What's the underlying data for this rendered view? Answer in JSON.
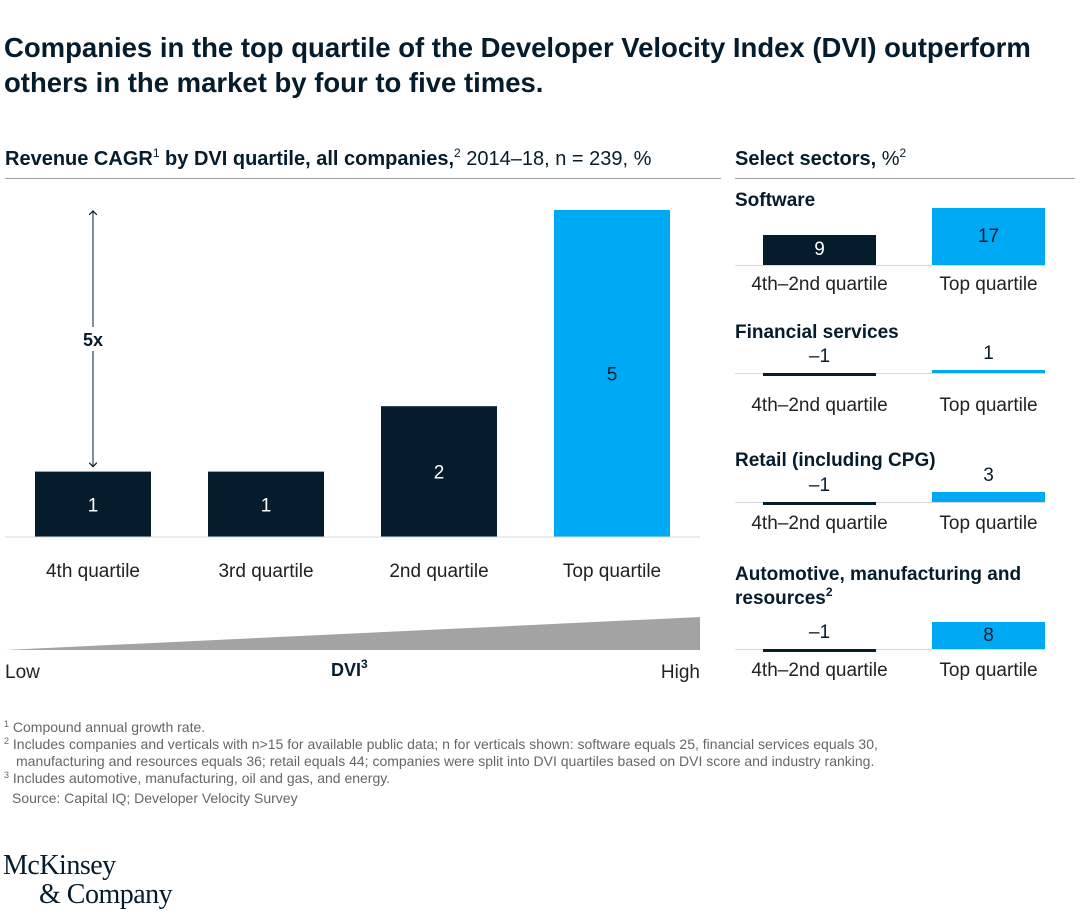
{
  "title": "Companies in the top quartile of the Developer Velocity Index (DVI) outperform others in the market by four to five times.",
  "left_panel": {
    "title_bold": "Revenue CAGR",
    "title_sup1": "1",
    "title_bold2": " by DVI quartile, all companies,",
    "title_sup2": "2",
    "title_rest": " 2014–18, n = 239, %",
    "multiplier_label": "5x",
    "axis_low": "Low",
    "axis_high": "High",
    "axis_label": "DVI",
    "axis_sup": "3"
  },
  "right_panel": {
    "title_bold": "Select sectors,",
    "title_rest": " %",
    "title_sup": "2"
  },
  "colors": {
    "dark": "#051c2c",
    "accent": "#00a9f4",
    "gray": "#a3a3a3"
  },
  "chart_data": [
    {
      "type": "bar",
      "title": "Revenue CAGR by DVI quartile, all companies, 2014–18, n = 239, %",
      "categories": [
        "4th quartile",
        "3rd quartile",
        "2nd quartile",
        "Top quartile"
      ],
      "values": [
        1,
        1,
        2,
        5
      ],
      "value_labels": [
        "1",
        "1",
        "2",
        "5"
      ],
      "xlabel": "DVI",
      "ylim": [
        0,
        5
      ]
    },
    {
      "type": "bar",
      "title": "Select sectors, %",
      "categories": [
        "4th–2nd quartile",
        "Top quartile"
      ],
      "series": [
        {
          "name": "Software",
          "display_name": "Software",
          "name_sup": "",
          "values": [
            9,
            17
          ],
          "value_labels": [
            "9",
            "17"
          ]
        },
        {
          "name": "Financial services",
          "display_name": "Financial services",
          "name_sup": "",
          "values": [
            -1,
            1
          ],
          "value_labels": [
            "–1",
            "1"
          ]
        },
        {
          "name": "Retail (including CPG)",
          "display_name": "Retail (including CPG)",
          "name_sup": "",
          "values": [
            -1,
            3
          ],
          "value_labels": [
            "–1",
            "3"
          ]
        },
        {
          "name": "Automotive, manufacturing and resources",
          "display_name": "Automotive, manufacturing and resources",
          "name_sup": "2",
          "values": [
            -1,
            8
          ],
          "value_labels": [
            "–1",
            "8"
          ]
        }
      ]
    }
  ],
  "footnotes": [
    {
      "sup": "1",
      "text": " Compound annual growth rate."
    },
    {
      "sup": "2",
      "text": " Includes companies and verticals with n>15 for available public data; n for verticals shown: software equals 25, financial services equals 30,"
    },
    {
      "sup": "",
      "text": "manufacturing and resources equals 36; retail equals 44; companies were split into DVI quartiles based on DVI score and industry ranking."
    },
    {
      "sup": "3",
      "text": " Includes automotive, manufacturing, oil and gas, and energy."
    }
  ],
  "source": "Source: Capital IQ; Developer Velocity Survey",
  "logo": {
    "line1": "McKinsey",
    "line2": "& Company"
  }
}
